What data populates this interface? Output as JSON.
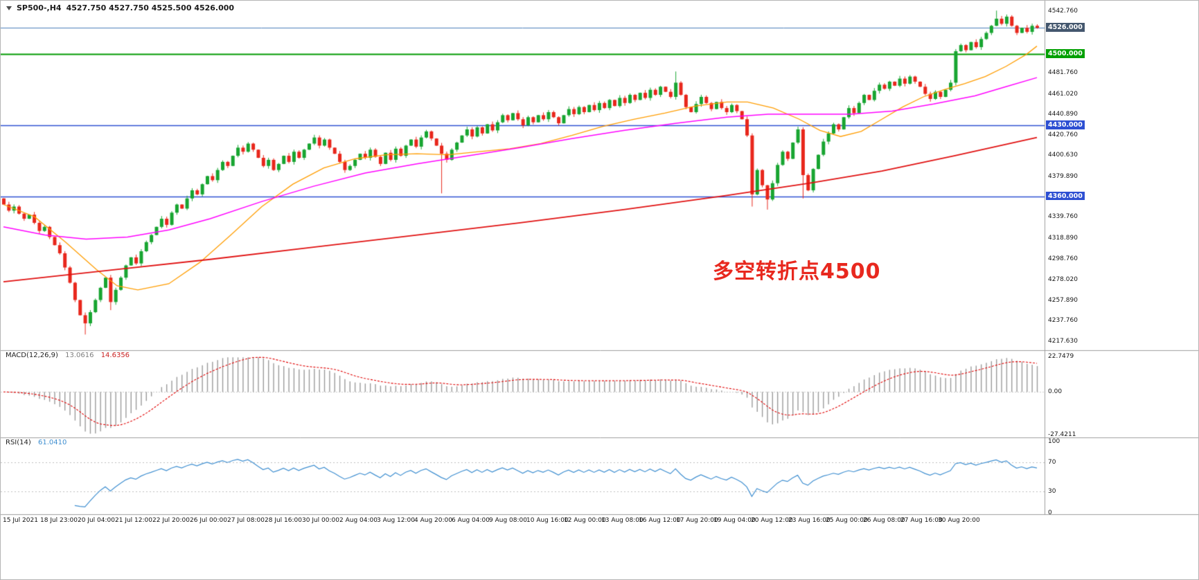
{
  "header": {
    "symbol_period": "SP500-,H4",
    "ohlc": "4527.750 4527.750 4525.500 4526.000"
  },
  "annotation": {
    "text": "多空转折点4500",
    "color": "#e8281e"
  },
  "chart_data": {
    "type": "candlestick",
    "symbol": "SP500-",
    "timeframe": "H4",
    "title": "SP500-,H4",
    "price_range": [
      4214,
      4550
    ],
    "first_open": 4358,
    "closes": [
      4352,
      4346,
      4350,
      4343,
      4338,
      4342,
      4334,
      4326,
      4330,
      4320,
      4312,
      4304,
      4290,
      4275,
      4258,
      4243,
      4235,
      4246,
      4258,
      4270,
      4280,
      4256,
      4268,
      4280,
      4292,
      4300,
      4294,
      4306,
      4315,
      4322,
      4330,
      4338,
      4332,
      4344,
      4352,
      4348,
      4358,
      4366,
      4362,
      4372,
      4380,
      4376,
      4386,
      4394,
      4390,
      4400,
      4408,
      4404,
      4412,
      4406,
      4398,
      4390,
      4396,
      4386,
      4392,
      4400,
      4394,
      4404,
      4398,
      4406,
      4412,
      4418,
      4410,
      4416,
      4408,
      4402,
      4394,
      4386,
      4390,
      4396,
      4402,
      4398,
      4406,
      4399,
      4392,
      4403,
      4396,
      4407,
      4400,
      4410,
      4416,
      4409,
      4418,
      4424,
      4417,
      4410,
      4402,
      4396,
      4406,
      4413,
      4420,
      4426,
      4419,
      4428,
      4422,
      4431,
      4425,
      4433,
      4440,
      4435,
      4442,
      4436,
      4430,
      4438,
      4433,
      4440,
      4436,
      4443,
      4438,
      4432,
      4440,
      4446,
      4441,
      4448,
      4443,
      4450,
      4445,
      4452,
      4447,
      4455,
      4449,
      4457,
      4452,
      4460,
      4455,
      4462,
      4457,
      4465,
      4460,
      4468,
      4463,
      4458,
      4472,
      4460,
      4448,
      4443,
      4451,
      4458,
      4452,
      4446,
      4453,
      4447,
      4443,
      4450,
      4444,
      4436,
      4420,
      4362,
      4386,
      4371,
      4357,
      4373,
      4391,
      4404,
      4397,
      4413,
      4426,
      4381,
      4366,
      4387,
      4401,
      4414,
      4422,
      4431,
      4426,
      4438,
      4447,
      4442,
      4452,
      4460,
      4455,
      4464,
      4470,
      4466,
      4473,
      4469,
      4476,
      4471,
      4478,
      4473,
      4468,
      4461,
      4456,
      4463,
      4458,
      4465,
      4472,
      4503,
      4509,
      4504,
      4512,
      4507,
      4515,
      4521,
      4528,
      4535,
      4530,
      4537,
      4528,
      4521,
      4526,
      4522,
      4528,
      4526
    ],
    "wick_overrides": {
      "16": {
        "low": 4224
      },
      "21": {
        "low": 4248
      },
      "86": {
        "low": 4363
      },
      "132": {
        "high": 4483
      },
      "147": {
        "low": 4350
      },
      "150": {
        "low": 4347
      },
      "157": {
        "low": 4358
      },
      "195": {
        "high": 4543
      }
    },
    "moving_averages": [
      {
        "name": "ma-fast-orange",
        "color": "#ff9d00",
        "width": 1.3,
        "points": [
          [
            0,
            4352
          ],
          [
            0.03,
            4340
          ],
          [
            0.06,
            4315
          ],
          [
            0.09,
            4288
          ],
          [
            0.11,
            4272
          ],
          [
            0.13,
            4268
          ],
          [
            0.16,
            4274
          ],
          [
            0.19,
            4295
          ],
          [
            0.22,
            4322
          ],
          [
            0.25,
            4350
          ],
          [
            0.28,
            4372
          ],
          [
            0.31,
            4388
          ],
          [
            0.34,
            4397
          ],
          [
            0.37,
            4401
          ],
          [
            0.4,
            4402
          ],
          [
            0.43,
            4401
          ],
          [
            0.46,
            4404
          ],
          [
            0.49,
            4407
          ],
          [
            0.52,
            4412
          ],
          [
            0.55,
            4420
          ],
          [
            0.58,
            4429
          ],
          [
            0.61,
            4436
          ],
          [
            0.64,
            4442
          ],
          [
            0.67,
            4449
          ],
          [
            0.7,
            4453
          ],
          [
            0.72,
            4453
          ],
          [
            0.745,
            4447
          ],
          [
            0.77,
            4436
          ],
          [
            0.79,
            4425
          ],
          [
            0.81,
            4419
          ],
          [
            0.83,
            4424
          ],
          [
            0.85,
            4436
          ],
          [
            0.87,
            4448
          ],
          [
            0.89,
            4458
          ],
          [
            0.91,
            4465
          ],
          [
            0.93,
            4471
          ],
          [
            0.95,
            4478
          ],
          [
            0.97,
            4488
          ],
          [
            0.99,
            4500
          ],
          [
            1,
            4508
          ]
        ]
      },
      {
        "name": "ma-medium-magenta",
        "color": "#ff00ff",
        "width": 1.5,
        "points": [
          [
            0,
            4330
          ],
          [
            0.04,
            4322
          ],
          [
            0.08,
            4318
          ],
          [
            0.12,
            4320
          ],
          [
            0.16,
            4327
          ],
          [
            0.2,
            4338
          ],
          [
            0.25,
            4355
          ],
          [
            0.3,
            4370
          ],
          [
            0.35,
            4383
          ],
          [
            0.4,
            4392
          ],
          [
            0.45,
            4400
          ],
          [
            0.5,
            4408
          ],
          [
            0.55,
            4417
          ],
          [
            0.6,
            4425
          ],
          [
            0.65,
            4432
          ],
          [
            0.7,
            4438
          ],
          [
            0.74,
            4441
          ],
          [
            0.78,
            4441
          ],
          [
            0.82,
            4441
          ],
          [
            0.86,
            4444
          ],
          [
            0.9,
            4451
          ],
          [
            0.94,
            4459
          ],
          [
            0.97,
            4468
          ],
          [
            1,
            4477
          ]
        ]
      },
      {
        "name": "ma-slow-red",
        "color": "#e01010",
        "width": 1.8,
        "points": [
          [
            0,
            4276
          ],
          [
            0.1,
            4287
          ],
          [
            0.2,
            4298
          ],
          [
            0.3,
            4310
          ],
          [
            0.4,
            4322
          ],
          [
            0.5,
            4334
          ],
          [
            0.6,
            4347
          ],
          [
            0.7,
            4361
          ],
          [
            0.78,
            4373
          ],
          [
            0.85,
            4385
          ],
          [
            0.92,
            4400
          ],
          [
            1,
            4418
          ]
        ]
      }
    ],
    "horizontal_lines": [
      {
        "label": "4526.000",
        "price": 4526.0,
        "line_color": "#4a7ebb",
        "badge_bg": "#44576e",
        "width": 1
      },
      {
        "label": "4500.000",
        "price": 4500.0,
        "line_color": "#009900",
        "badge_bg": "#00a000",
        "width": 2
      },
      {
        "label": "4430.000",
        "price": 4430.0,
        "line_color": "#2d4fd2",
        "badge_bg": "#2d4fd2",
        "width": 1.5
      },
      {
        "label": "4360.000",
        "price": 4360.0,
        "line_color": "#2d4fd2",
        "badge_bg": "#2d4fd2",
        "width": 1.5
      }
    ],
    "price_axis_labels": [
      {
        "text": "4542.760",
        "value": 4542.76
      },
      {
        "text": "4481.760",
        "value": 4481.76
      },
      {
        "text": "4461.020",
        "value": 4461.02
      },
      {
        "text": "4440.890",
        "value": 4440.89
      },
      {
        "text": "4420.760",
        "value": 4420.76
      },
      {
        "text": "4400.630",
        "value": 4400.63
      },
      {
        "text": "4379.890",
        "value": 4379.89
      },
      {
        "text": "4339.760",
        "value": 4339.76
      },
      {
        "text": "4318.890",
        "value": 4318.89
      },
      {
        "text": "4298.760",
        "value": 4298.76
      },
      {
        "text": "4278.020",
        "value": 4278.02
      },
      {
        "text": "4257.890",
        "value": 4257.89
      },
      {
        "text": "4237.760",
        "value": 4237.76
      },
      {
        "text": "4217.630",
        "value": 4217.63
      }
    ],
    "time_axis_labels": [
      "15 Jul 2021",
      "18 Jul 23:00",
      "20 Jul 04:00",
      "21 Jul 12:00",
      "22 Jul 20:00",
      "26 Jul 00:00",
      "27 Jul 08:00",
      "28 Jul 16:00",
      "30 Jul 00:00",
      "2 Aug 04:00",
      "3 Aug 12:00",
      "4 Aug 20:00",
      "6 Aug 04:00",
      "9 Aug 08:00",
      "10 Aug 16:00",
      "12 Aug 00:00",
      "13 Aug 08:00",
      "16 Aug 12:00",
      "17 Aug 20:00",
      "19 Aug 04:00",
      "20 Aug 12:00",
      "23 Aug 16:00",
      "25 Aug 00:00",
      "26 Aug 08:00",
      "27 Aug 16:00",
      "30 Aug 20:00"
    ],
    "indicators": {
      "macd": {
        "label": "MACD(12,26,9)",
        "value_main": "13.0616",
        "value_signal": "14.6356",
        "fast": 12,
        "slow": 26,
        "signal": 9,
        "range": [
          -27.4211,
          22.7479
        ],
        "axis_labels": [
          {
            "text": "22.7479",
            "value": 22.7479
          },
          {
            "text": "0.00",
            "value": 0
          },
          {
            "text": "-27.4211",
            "value": -27.4211
          }
        ]
      },
      "rsi": {
        "label": "RSI(14)",
        "value": "61.0410",
        "period": 14,
        "range": [
          0,
          100
        ],
        "levels": [
          70,
          30
        ],
        "axis_labels": [
          {
            "text": "100",
            "value": 100
          },
          {
            "text": "70",
            "value": 70
          },
          {
            "text": "30",
            "value": 30
          },
          {
            "text": "0",
            "value": 0
          }
        ]
      }
    },
    "colors": {
      "bull": "#18a531",
      "bear": "#e8271c",
      "macd_hist": "#9a9a9a",
      "macd_signal": "#e00000",
      "rsi_line": "#3e8ed0",
      "separator": "#9c9c9c",
      "grid_dotted": "#c9c9c9"
    }
  }
}
